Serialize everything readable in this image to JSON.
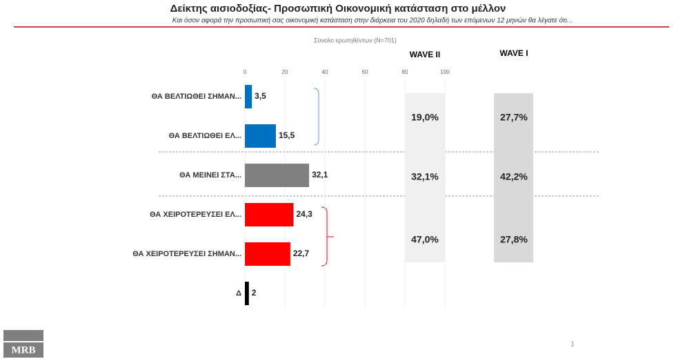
{
  "header": {
    "title": "Δείκτης αισιοδοξίας- Προσωπική Οικονομική κατάσταση στο μέλλον",
    "subtitle": "Και όσον αφορά την προσωπική σας οικονομική κατάσταση στην διάρκεια του 2020 δηλαδή των επόμενων 12 μηνών θα λέγατε ότι..."
  },
  "chart_data": {
    "type": "bar",
    "orientation": "horizontal",
    "subtitle": "Σύνολο ερωτηθέντων (N=701)",
    "categories": [
      "ΘΑ ΒΕΛΤΙΩΘΕΙ ΣΗΜΑΝ...",
      "ΘΑ ΒΕΛΤΙΩΘΕΙ ΕΛ...",
      "ΘΑ ΜΕΙΝΕΙ ΣΤΑ...",
      "ΘΑ ΧΕΙΡΟΤΕΡΕΥΣΕΙ ΕΛ...",
      "ΘΑ ΧΕΙΡΟΤΕΡΕΥΣΕΙ ΣΗΜΑΝ...",
      "Δ"
    ],
    "values": [
      3.5,
      15.5,
      32.1,
      24.3,
      22.7,
      2
    ],
    "value_labels": [
      "3,5",
      "15,5",
      "32,1",
      "24,3",
      "22,7",
      "2"
    ],
    "colors": [
      "#0070c0",
      "#0070c0",
      "#808080",
      "#ff0000",
      "#ff0000",
      "#000000"
    ],
    "xlim": [
      0,
      100
    ],
    "xticks": [
      0,
      20,
      40,
      60,
      80,
      100
    ],
    "grid": true
  },
  "waves": [
    {
      "name": "WAVE II",
      "cells": [
        "19,0%",
        "32,1%",
        "47,0%"
      ]
    },
    {
      "name": "WAVE I",
      "cells": [
        "27,7%",
        "42,2%",
        "27,8%"
      ]
    }
  ],
  "footer": {
    "logo": "MRB",
    "page": "1"
  }
}
